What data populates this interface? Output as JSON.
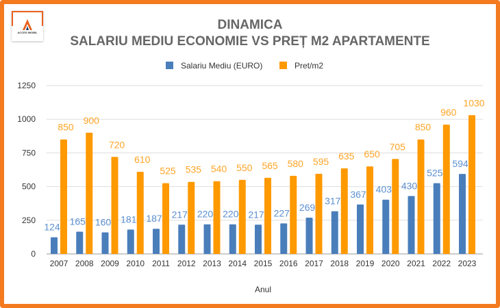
{
  "logo": {
    "text": "ACCES IMOBIL"
  },
  "chart_data": {
    "type": "bar",
    "title": "DINAMICA",
    "subtitle": "SALARIU MEDIU ECONOMIE VS PREȚ M2 APARTAMENTE",
    "xlabel": "Anul",
    "ylabel": "",
    "ylim": [
      0,
      1250
    ],
    "yticks": [
      0,
      250,
      500,
      750,
      1000,
      1250
    ],
    "grid": true,
    "legend_position": "top",
    "categories": [
      "2007",
      "2008",
      "2009",
      "2010",
      "2011",
      "2012",
      "2013",
      "2014",
      "2015",
      "2016",
      "2017",
      "2018",
      "2019",
      "2020",
      "2021",
      "2022",
      "2023"
    ],
    "series": [
      {
        "name": "Salariu Mediu (EURO)",
        "color": "#4a7ebb",
        "values": [
          124,
          165,
          160,
          181,
          187,
          217,
          220,
          220,
          217,
          227,
          269,
          317,
          367,
          403,
          430,
          525,
          594
        ]
      },
      {
        "name": "Pret/m2",
        "color": "#ff9900",
        "values": [
          850,
          900,
          720,
          610,
          525,
          535,
          540,
          550,
          565,
          580,
          595,
          635,
          650,
          705,
          850,
          960,
          1030
        ]
      }
    ]
  }
}
